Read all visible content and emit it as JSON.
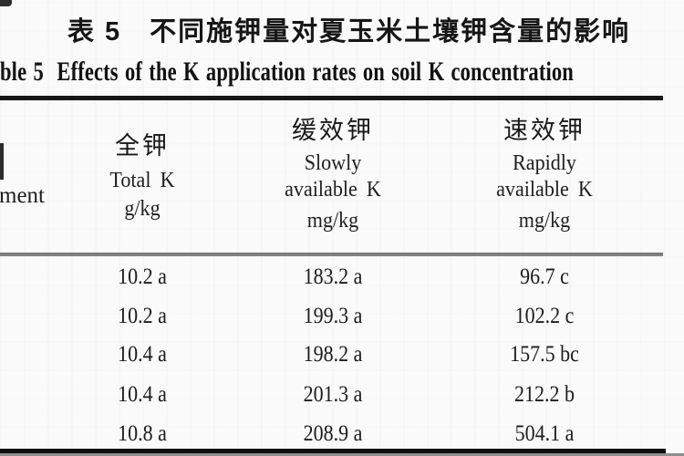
{
  "captions": {
    "chinese": "表 5　不同施钾量对夏玉米土壤钾含量的影响",
    "english": "ble 5  Effects of the K application rates on soil K concentration"
  },
  "header": {
    "treatment_fragment": "ment",
    "total_k": {
      "cn": "全钾",
      "en": "Total K",
      "unit": "g/kg"
    },
    "slowly_available_k": {
      "cn": "缓效钾",
      "en1": "Slowly",
      "en2": "available K",
      "unit": "mg/kg"
    },
    "rapidly_available_k": {
      "cn": "速效钾",
      "en1": "Rapidly",
      "en2": "available K",
      "unit": "mg/kg"
    }
  },
  "rows": [
    {
      "total_k": "10.2 a",
      "slowly_available_k": "183.2 a",
      "rapidly_available_k": "96.7 c"
    },
    {
      "total_k": "10.2 a",
      "slowly_available_k": "199.3 a",
      "rapidly_available_k": "102.2 c"
    },
    {
      "total_k": "10.4 a",
      "slowly_available_k": "198.2 a",
      "rapidly_available_k": "157.5 bc"
    },
    {
      "total_k": "10.4 a",
      "slowly_available_k": "201.3 a",
      "rapidly_available_k": "212.2 b"
    },
    {
      "total_k": "10.8 a",
      "slowly_available_k": "208.9 a",
      "rapidly_available_k": "504.1 a"
    }
  ],
  "colors": {
    "text": "#1e1e1e",
    "rule_dark": "#161616",
    "rule_gray": "#8a8a8a",
    "background": "#fafafa"
  }
}
